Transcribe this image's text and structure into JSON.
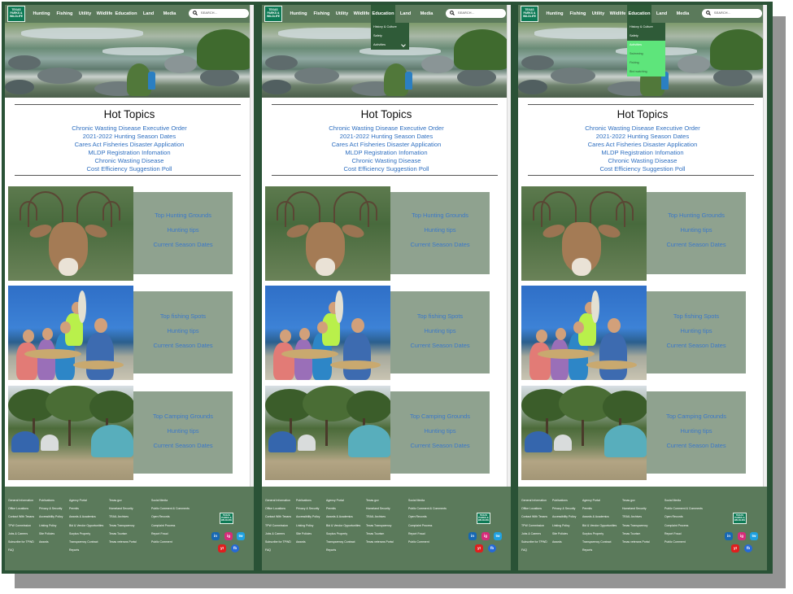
{
  "logo": {
    "line1": "TEXAS",
    "line2": "PARKS &",
    "line3": "WILDLIFE"
  },
  "nav": [
    "Hunting",
    "Fishing",
    "Utility",
    "Wildlife",
    "Education",
    "Land",
    "Media"
  ],
  "search": {
    "placeholder": "SEARCH..."
  },
  "dropdown": {
    "items": [
      "History & Culture",
      "Safety",
      "Activities"
    ],
    "sub_items": [
      "Swimming",
      "Fishing",
      "Bird watching"
    ]
  },
  "hot_topics": {
    "title": "Hot Topics",
    "links": [
      "Chronic Wasting Disease Executive Order",
      "2021-2022 Hunting Season Dates",
      "Cares Act Fisheries Disaster Application",
      "MLDP Registration Infomation",
      "Chronic Wasting Disease",
      "Cost Efficiency Suggestion Poll"
    ]
  },
  "sections": [
    {
      "links": [
        "Top Hunting Grounds",
        "Hunting tips",
        "Current Season Dates"
      ]
    },
    {
      "links": [
        "Top fishing Spots",
        "Hunting tips",
        "Current Season Dates"
      ]
    },
    {
      "links": [
        "Top Camping Grounds",
        "Hunting tips",
        "Current Season Dates"
      ]
    }
  ],
  "footer": {
    "col1": [
      "General Information",
      "Office Locations",
      "Contact With Texans",
      "TPW Commission",
      "Jobs & Careers",
      "Subscribe for TPWD",
      "FAQ"
    ],
    "col2": [
      "Publications",
      "Privacy & Security",
      "Accessibility Policy",
      "Linking Policy",
      "Site Policies",
      "Awards"
    ],
    "col3": [
      "Agency Portal",
      "Permits",
      "Awards & Academics",
      "Bid & Vendor Opportunities",
      "Surplus Property",
      "Transparency Contract",
      "Reports"
    ],
    "col4": [
      "Texas.gov",
      "Homeland Security",
      "TRAIL Archives",
      "Texas Transparency",
      "Texas Tourism",
      "Texas veterans Portal"
    ],
    "col5": [
      "Social Media",
      "Public Comment & Comments",
      "Open Records",
      "Complaint Process",
      "Report Fraud",
      "Public Comment"
    ],
    "social": [
      "in",
      "ig",
      "tw",
      "yt",
      "fb"
    ]
  },
  "colors": {
    "nav_bg": "#5b7a5b",
    "nav_active": "#2f5b38",
    "highlight": "#5ee57b",
    "link": "#2f6fc0",
    "card_bg": "#8fa28f",
    "frame": "#2a5236"
  }
}
